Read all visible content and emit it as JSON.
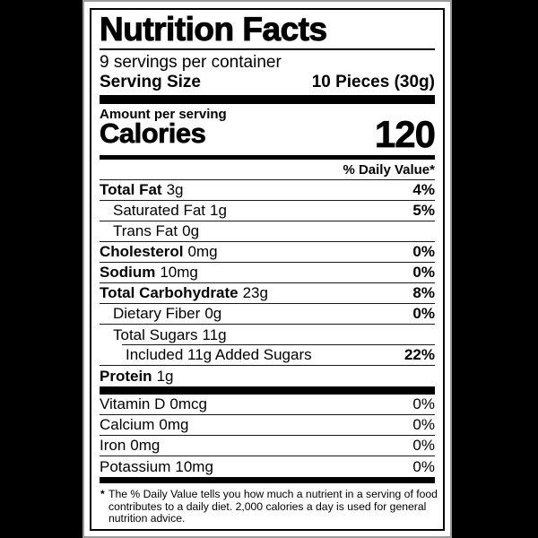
{
  "colors": {
    "page_background": "#000000",
    "label_background": "#ffffff",
    "text": "#000000"
  },
  "label": {
    "title": "Nutrition Facts",
    "servings_per_container": "9 servings per container",
    "serving_size_label": "Serving Size",
    "serving_size_value": "10 Pieces (30g)",
    "amount_per_serving": "Amount per serving",
    "calories_label": "Calories",
    "calories_value": "120",
    "daily_value_header": "% Daily Value*",
    "rows": [
      {
        "name": "Total Fat",
        "amount": "3g",
        "dv": "4%"
      },
      {
        "name": "Saturated Fat",
        "amount": "1g",
        "dv": "5%"
      },
      {
        "name": "Trans Fat",
        "amount": "0g",
        "dv": ""
      },
      {
        "name": "Cholesterol",
        "amount": "0mg",
        "dv": "0%"
      },
      {
        "name": "Sodium",
        "amount": "10mg",
        "dv": "0%"
      },
      {
        "name": "Total Carbohydrate",
        "amount": "23g",
        "dv": "8%"
      },
      {
        "name": "Dietary Fiber",
        "amount": "0g",
        "dv": "0%"
      },
      {
        "name": "Total Sugars",
        "amount": "11g",
        "dv": ""
      },
      {
        "name": "Included 11g Added Sugars",
        "amount": "",
        "dv": "22%"
      },
      {
        "name": "Protein",
        "amount": "1g",
        "dv": ""
      }
    ],
    "vitamins": [
      {
        "name": "Vitamin D",
        "amount": "0mcg",
        "dv": "0%"
      },
      {
        "name": "Calcium",
        "amount": "0mg",
        "dv": "0%"
      },
      {
        "name": "Iron",
        "amount": "0mg",
        "dv": "0%"
      },
      {
        "name": "Potassium",
        "amount": "10mg",
        "dv": "0%"
      }
    ],
    "footnote_marker": "*",
    "footnote_lines": [
      "The % Daily Value tells you how much a nutrient in a serving of food",
      "contributes to a daily diet. 2,000 calories a day is used for general",
      "nutrition advice."
    ]
  }
}
